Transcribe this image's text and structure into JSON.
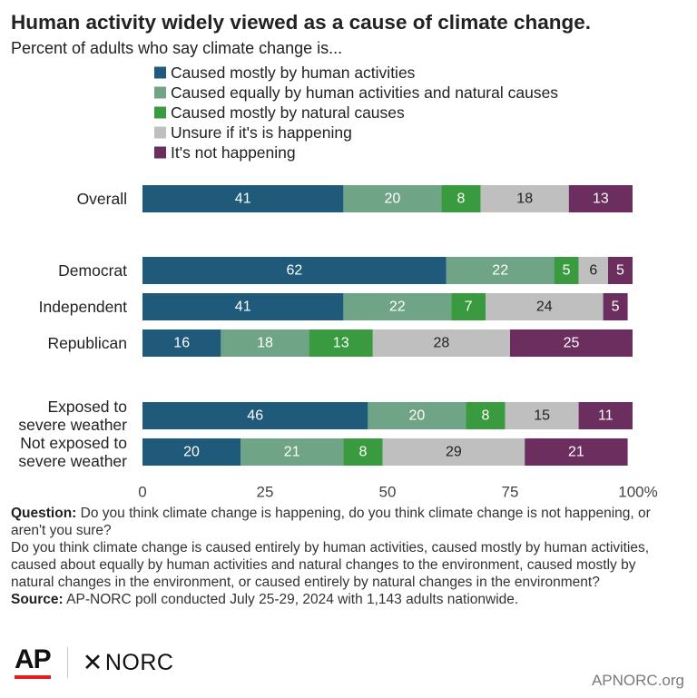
{
  "header": {
    "title": "Human activity widely viewed as a cause of climate change.",
    "subtitle": "Percent of adults who say climate change is..."
  },
  "chart_data": {
    "type": "bar",
    "orientation": "horizontal",
    "stacked": true,
    "categories": [
      [
        "Overall"
      ],
      [
        "Democrat"
      ],
      [
        "Independent"
      ],
      [
        "Republican"
      ],
      [
        "Exposed to",
        "severe weather"
      ],
      [
        "Not exposed to",
        "severe weather"
      ]
    ],
    "series": [
      {
        "name": "Caused mostly by human activities",
        "color": "#1f5a7a",
        "label_color": "#ffffff",
        "values": [
          41,
          62,
          41,
          16,
          46,
          20
        ]
      },
      {
        "name": "Caused equally by human activities and natural causes",
        "color": "#6fa586",
        "label_color": "#ffffff",
        "values": [
          20,
          22,
          22,
          18,
          20,
          21
        ]
      },
      {
        "name": "Caused mostly by natural causes",
        "color": "#3a9a3f",
        "label_color": "#ffffff",
        "values": [
          8,
          5,
          7,
          13,
          8,
          8
        ]
      },
      {
        "name": "Unsure if it's is happening",
        "color": "#bfbfbf",
        "label_color": "#222222",
        "values": [
          18,
          6,
          24,
          28,
          15,
          29
        ]
      },
      {
        "name": "It's not happening",
        "color": "#6b2e5f",
        "label_color": "#ffffff",
        "values": [
          13,
          5,
          5,
          25,
          11,
          21
        ]
      }
    ],
    "xlim": [
      0,
      100
    ],
    "xticks": [
      0,
      25,
      50,
      75,
      100
    ],
    "xtick_labels": [
      "0",
      "25",
      "50",
      "75",
      "100%"
    ],
    "legend_position": "top",
    "grid": false
  },
  "notes": {
    "question_label": "Question:",
    "question_text": " Do you think climate change is happening, do you think climate change is not happening, or aren't you sure?",
    "question_text_2": "Do you think climate change is caused entirely by human activities, caused mostly by human activities, caused about equally by human activities and natural changes to the environment, caused mostly by natural changes in the environment, or caused entirely by natural changes in the environment?",
    "source_label": "Source:",
    "source_text": " AP-NORC poll conducted July 25-29, 2024 with 1,143 adults nationwide."
  },
  "branding": {
    "ap": "AP",
    "norc": "NORC",
    "site": "APNORC.org"
  }
}
